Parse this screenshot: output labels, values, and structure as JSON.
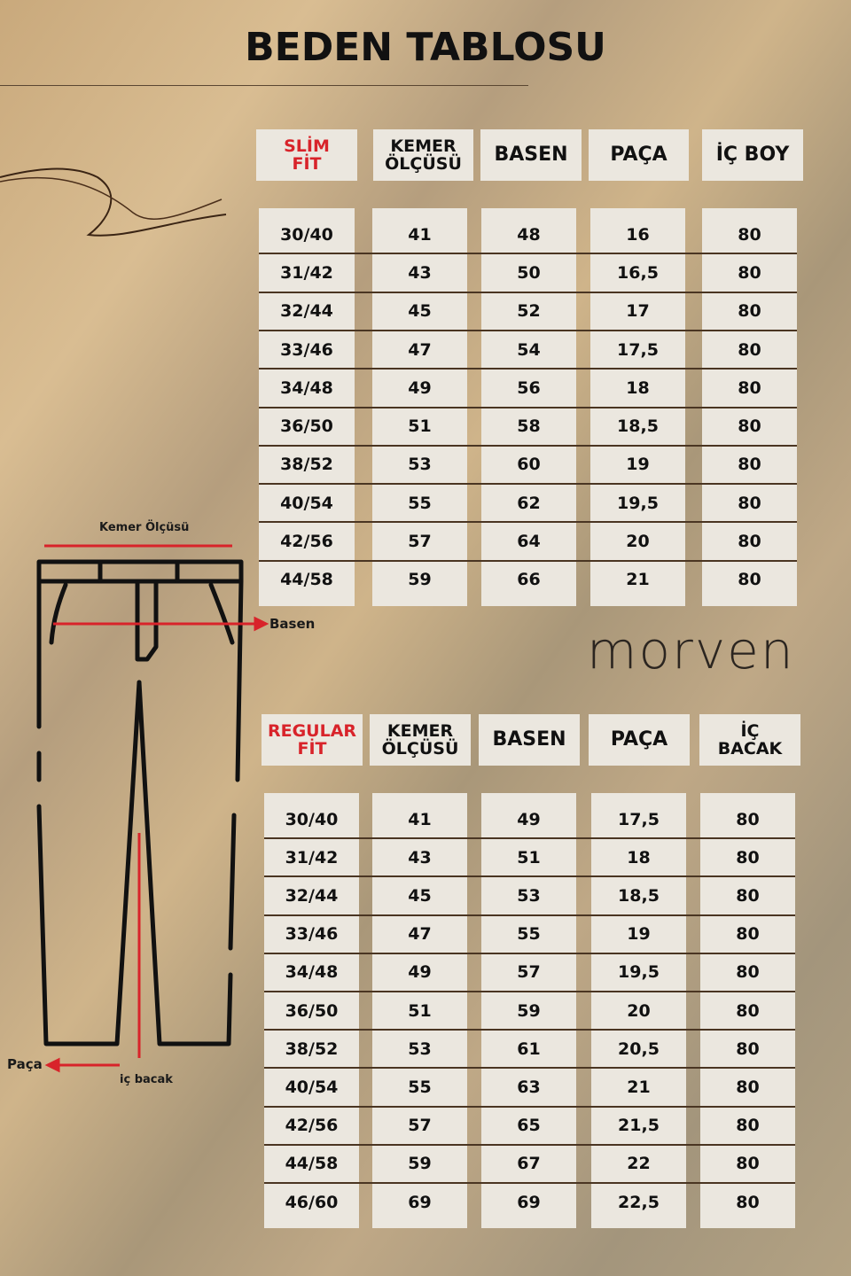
{
  "title": "BEDEN TABLOSU",
  "brand": "morven",
  "diagram": {
    "waist_label": "Kemer Ölçüsü",
    "hip_label": "Basen",
    "hem_label": "Paça",
    "inseam_label": "iç bacak"
  },
  "colors": {
    "accent_red": "#d8232a",
    "cell_bg": "#ebe7df",
    "divider": "#4a3522"
  },
  "slim_fit": {
    "headers": [
      "SLİM FİT",
      "KEMER ÖLÇÜSÜ",
      "BASEN",
      "PAÇA",
      "İÇ BOY"
    ],
    "rows": [
      [
        "30/40",
        "41",
        "48",
        "16",
        "80"
      ],
      [
        "31/42",
        "43",
        "50",
        "16,5",
        "80"
      ],
      [
        "32/44",
        "45",
        "52",
        "17",
        "80"
      ],
      [
        "33/46",
        "47",
        "54",
        "17,5",
        "80"
      ],
      [
        "34/48",
        "49",
        "56",
        "18",
        "80"
      ],
      [
        "36/50",
        "51",
        "58",
        "18,5",
        "80"
      ],
      [
        "38/52",
        "53",
        "60",
        "19",
        "80"
      ],
      [
        "40/54",
        "55",
        "62",
        "19,5",
        "80"
      ],
      [
        "42/56",
        "57",
        "64",
        "20",
        "80"
      ],
      [
        "44/58",
        "59",
        "66",
        "21",
        "80"
      ]
    ]
  },
  "regular_fit": {
    "headers": [
      "REGULAR FİT",
      "KEMER ÖLÇÜSÜ",
      "BASEN",
      "PAÇA",
      "İÇ BACAK"
    ],
    "rows": [
      [
        "30/40",
        "41",
        "49",
        "17,5",
        "80"
      ],
      [
        "31/42",
        "43",
        "51",
        "18",
        "80"
      ],
      [
        "32/44",
        "45",
        "53",
        "18,5",
        "80"
      ],
      [
        "33/46",
        "47",
        "55",
        "19",
        "80"
      ],
      [
        "34/48",
        "49",
        "57",
        "19,5",
        "80"
      ],
      [
        "36/50",
        "51",
        "59",
        "20",
        "80"
      ],
      [
        "38/52",
        "53",
        "61",
        "20,5",
        "80"
      ],
      [
        "40/54",
        "55",
        "63",
        "21",
        "80"
      ],
      [
        "42/56",
        "57",
        "65",
        "21,5",
        "80"
      ],
      [
        "44/58",
        "59",
        "67",
        "22",
        "80"
      ],
      [
        "46/60",
        "69",
        "69",
        "22,5",
        "80"
      ]
    ]
  }
}
